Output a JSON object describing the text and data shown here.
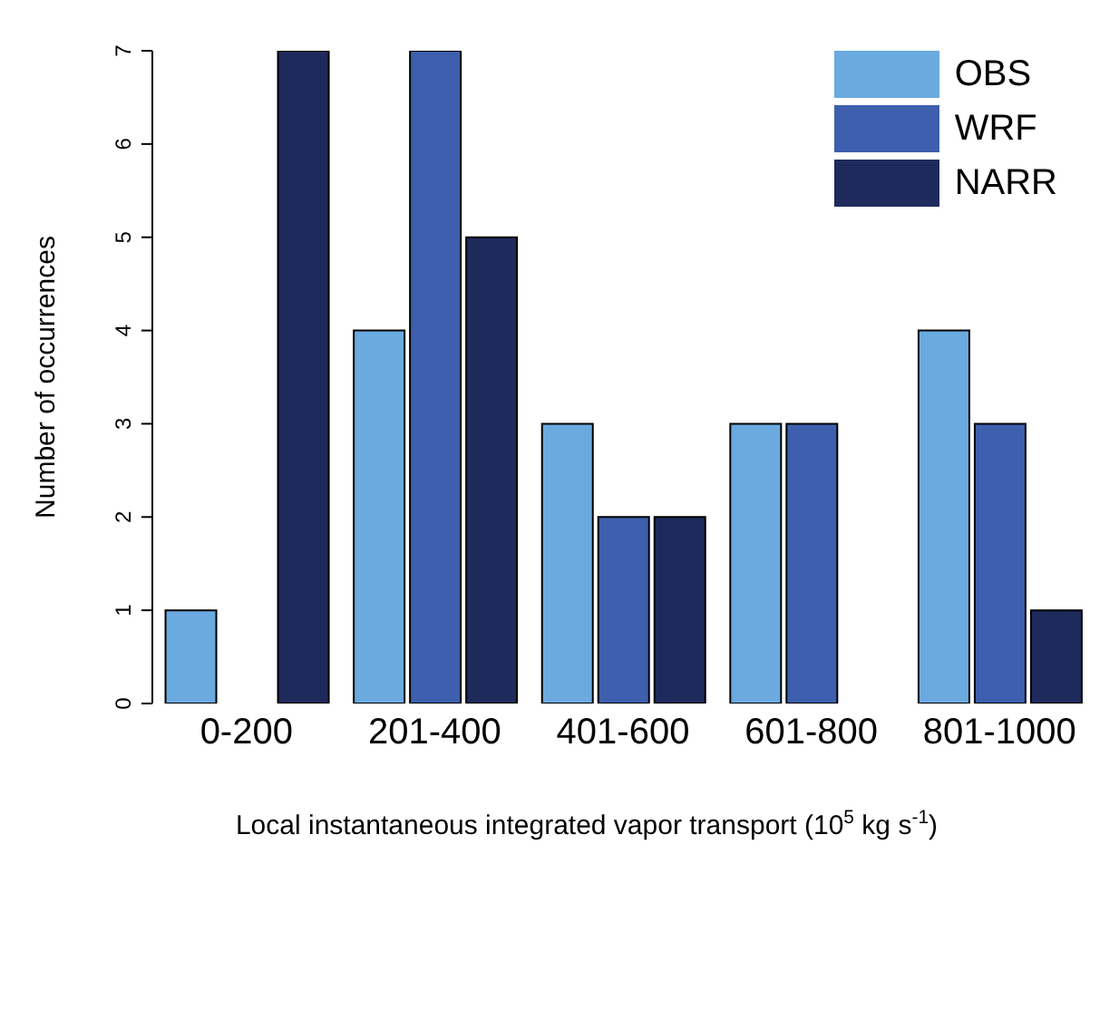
{
  "chart_data": {
    "type": "bar",
    "xlabel": "Local instantaneous integrated vapor transport (10$^{5}$ kg s$^{-1}$)",
    "ylabel": "Number of occurrences",
    "categories": [
      "0-200",
      "201-400",
      "401-600",
      "601-800",
      "801-1000"
    ],
    "series": [
      {
        "name": "OBS",
        "color": "#6aaadf",
        "values": [
          1,
          4,
          3,
          3,
          4
        ]
      },
      {
        "name": "WRF",
        "color": "#3d5fad",
        "values": [
          0,
          7,
          2,
          3,
          3
        ]
      },
      {
        "name": "NARR",
        "color": "#1f2a5c",
        "values": [
          7,
          5,
          2,
          0,
          1
        ]
      }
    ],
    "ylim": [
      0,
      7
    ],
    "yticks": [
      0,
      1,
      2,
      3,
      4,
      5,
      6,
      7
    ],
    "legend": "top right"
  }
}
